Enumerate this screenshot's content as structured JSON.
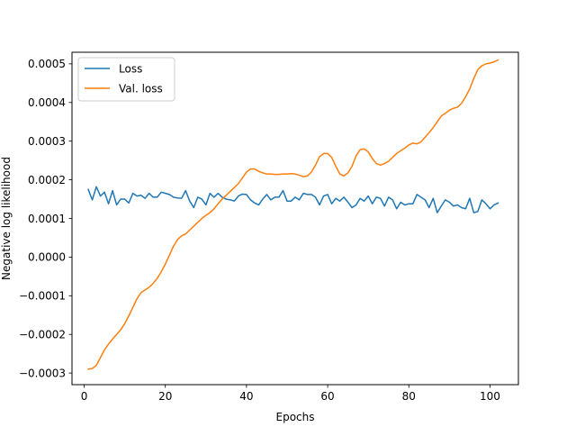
{
  "chart_data": {
    "type": "line",
    "title": "",
    "xlabel": "Epochs",
    "ylabel": "Negative log likelihood",
    "xlim": [
      -3,
      107
    ],
    "ylim": [
      -0.00033,
      0.00053
    ],
    "xticks": [
      0,
      20,
      40,
      60,
      80,
      100
    ],
    "xtick_labels": [
      "0",
      "20",
      "40",
      "60",
      "80",
      "100"
    ],
    "yticks": [
      -0.0003,
      -0.0002,
      -0.0001,
      0.0,
      0.0001,
      0.0002,
      0.0003,
      0.0004,
      0.0005
    ],
    "ytick_labels": [
      "−0.0003",
      "−0.0002",
      "−0.0001",
      "0.0000",
      "0.0001",
      "0.0002",
      "0.0003",
      "0.0004",
      "0.0005"
    ],
    "grid": false,
    "legend_position": "top-left",
    "x": [
      1,
      2,
      3,
      4,
      5,
      6,
      7,
      8,
      9,
      10,
      11,
      12,
      13,
      14,
      15,
      16,
      17,
      18,
      19,
      20,
      21,
      22,
      23,
      24,
      25,
      26,
      27,
      28,
      29,
      30,
      31,
      32,
      33,
      34,
      35,
      36,
      37,
      38,
      39,
      40,
      41,
      42,
      43,
      44,
      45,
      46,
      47,
      48,
      49,
      50,
      51,
      52,
      53,
      54,
      55,
      56,
      57,
      58,
      59,
      60,
      61,
      62,
      63,
      64,
      65,
      66,
      67,
      68,
      69,
      70,
      71,
      72,
      73,
      74,
      75,
      76,
      77,
      78,
      79,
      80,
      81,
      82,
      83,
      84,
      85,
      86,
      87,
      88,
      89,
      90,
      91,
      92,
      93,
      94,
      95,
      96,
      97,
      98,
      99,
      100,
      101,
      102
    ],
    "series": [
      {
        "name": "Loss",
        "color": "#1f77b4",
        "values": [
          0.000175,
          0.000148,
          0.000182,
          0.000158,
          0.000168,
          0.000138,
          0.000172,
          0.000135,
          0.00015,
          0.00015,
          0.00014,
          0.000165,
          0.000158,
          0.00016,
          0.000152,
          0.000165,
          0.000155,
          0.000155,
          0.000168,
          0.000165,
          0.000162,
          0.000155,
          0.000153,
          0.000152,
          0.000172,
          0.000145,
          0.000128,
          0.000155,
          0.00015,
          0.000135,
          0.000165,
          0.000155,
          0.000165,
          0.000155,
          0.00015,
          0.000148,
          0.000145,
          0.000158,
          0.000163,
          0.000162,
          0.000148,
          0.00014,
          0.000135,
          0.00015,
          0.000162,
          0.000148,
          0.000155,
          0.000155,
          0.000172,
          0.000145,
          0.000145,
          0.000155,
          0.000148,
          0.000165,
          0.000162,
          0.000162,
          0.000155,
          0.000135,
          0.000158,
          0.000162,
          0.000138,
          0.000152,
          0.000145,
          0.000155,
          0.000142,
          0.000128,
          0.000135,
          0.000152,
          0.000145,
          0.000158,
          0.000138,
          0.000155,
          0.000152,
          0.000132,
          0.000155,
          0.000148,
          0.000125,
          0.000142,
          0.000135,
          0.000138,
          0.000138,
          0.000162,
          0.000155,
          0.000148,
          0.000128,
          0.000152,
          0.000115,
          0.000132,
          0.000148,
          0.000142,
          0.000132,
          0.000135,
          0.000128,
          0.000125,
          0.000152,
          0.000115,
          0.000118,
          0.000148,
          0.000138,
          0.000125,
          0.000135,
          0.00014
        ]
      },
      {
        "name": "Val. loss",
        "color": "#ff7f0e",
        "values": [
          -0.00029,
          -0.000288,
          -0.00028,
          -0.00026,
          -0.00024,
          -0.000225,
          -0.000212,
          -0.0002,
          -0.000188,
          -0.000172,
          -0.000152,
          -0.00013,
          -0.000108,
          -9.2e-05,
          -8.5e-05,
          -7.8e-05,
          -6.8e-05,
          -5.5e-05,
          -3.8e-05,
          -1.8e-05,
          5e-06,
          2.8e-05,
          4.5e-05,
          5.5e-05,
          6e-05,
          7e-05,
          8e-05,
          9e-05,
          0.0001,
          0.000108,
          0.000115,
          0.000125,
          0.000138,
          0.00015,
          0.00016,
          0.00017,
          0.00018,
          0.00019,
          0.000205,
          0.00022,
          0.000228,
          0.000228,
          0.000222,
          0.000218,
          0.000215,
          0.000215,
          0.000214,
          0.000214,
          0.000215,
          0.000215,
          0.000216,
          0.000215,
          0.000212,
          0.000208,
          0.00021,
          0.00022,
          0.000238,
          0.00026,
          0.000268,
          0.000268,
          0.000258,
          0.000235,
          0.000215,
          0.00021,
          0.000218,
          0.000235,
          0.000262,
          0.000278,
          0.00028,
          0.000272,
          0.000255,
          0.000242,
          0.000238,
          0.000242,
          0.000248,
          0.000258,
          0.000268,
          0.000275,
          0.000282,
          0.00029,
          0.000295,
          0.000293,
          0.000298,
          0.00031,
          0.000322,
          0.000335,
          0.00035,
          0.000365,
          0.000372,
          0.00038,
          0.000385,
          0.000388,
          0.000398,
          0.000415,
          0.000435,
          0.000462,
          0.000485,
          0.000495,
          0.0005,
          0.000502,
          0.000505,
          0.00051
        ]
      }
    ]
  }
}
